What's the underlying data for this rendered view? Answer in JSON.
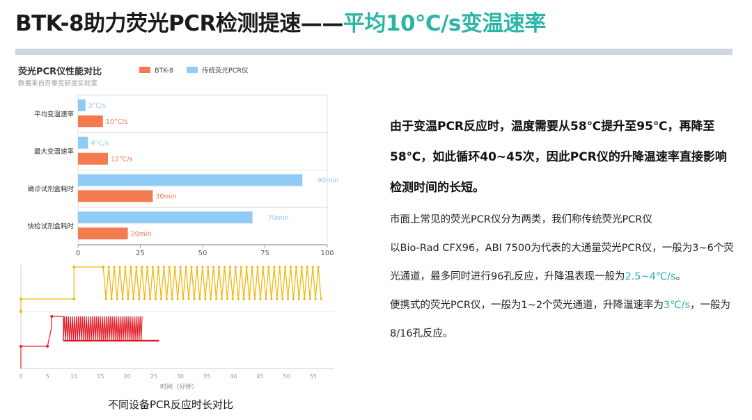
{
  "header": {
    "title_main": "BTK-8助力荧光PCR检测提速——",
    "title_accent": "平均10℃/s变温速率",
    "accent_color": "#2ab5a5"
  },
  "chart_data": [
    {
      "type": "bar",
      "orientation": "horizontal",
      "title": "荧光PCR仪性能对比",
      "subtitle": "数据来自百泰克研发实验室",
      "categories": [
        "平均变温速率",
        "最大变温速率",
        "确诊试剂盒耗时",
        "快检试剂盒耗时"
      ],
      "series": [
        {
          "name": "BTK-8",
          "color": "#f47a50",
          "values": [
            10,
            12,
            30,
            20
          ],
          "labels": [
            "10°C/s",
            "12°C/s",
            "30min",
            "20min"
          ]
        },
        {
          "name": "传统荧光PCR仪",
          "color": "#8fcbf5",
          "values": [
            3,
            4,
            90,
            70
          ],
          "labels": [
            "3°C/s",
            "4°C/s",
            "90min",
            "70min"
          ]
        }
      ],
      "xlim": [
        0,
        100
      ],
      "xticks": [
        "0",
        "25",
        "50",
        "75",
        "100"
      ],
      "legend": "top",
      "grid": true
    },
    {
      "type": "line",
      "xlabel": "时间（分钟）",
      "xlim": [
        0,
        57
      ],
      "xticks": [
        "0",
        "5",
        "10",
        "15",
        "20",
        "25",
        "30",
        "35",
        "40",
        "45",
        "50",
        "55"
      ],
      "series": [
        {
          "color": "#f2b70f",
          "cycle_start_min": 15.5,
          "cycle_end_min": 57,
          "cycles": 40
        },
        {
          "color": "#e01e2a",
          "cycle_start_min": 8,
          "cycle_end_min": 23,
          "cycles": 40
        }
      ]
    }
  ],
  "caption": "不同设备PCR反应时长对比",
  "text": {
    "para1": "由于变温PCR反应时，温度需要从58℃提升至95℃，再降至58℃，如此循环40~45次，因此PCR仪的升降温速率直接影响检测时间的长短。",
    "para2": "市面上常见的荧光PCR仪分为两类，我们称传统荧光PCR仪",
    "para3": "以Bio-Rad CFX96，ABI 7500为代表的大通量荧光PCR仪，一般为3~6个荧光通道，最多同时进行96孔反应，升降温表现一般为",
    "para3_hl": "2.5~4℃/s",
    "para3_end": "。",
    "para4": "便携式的荧光PCR仪，一般为1~2个荧光通道，升降温速率为",
    "para4_hl": "3℃/s",
    "para4_end": "，一般为8/16孔反应。"
  }
}
